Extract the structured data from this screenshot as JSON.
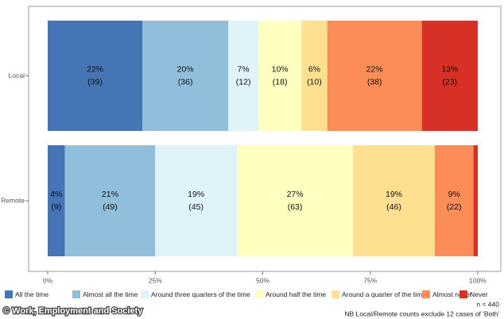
{
  "chart_data": {
    "type": "stacked-bar-horizontal",
    "categories": [
      "Local",
      "Remote"
    ],
    "series": [
      {
        "name": "All the time",
        "color": "#4575b4",
        "values": [
          22,
          4
        ],
        "value_labels": [
          "22%",
          "4%"
        ],
        "count_labels": [
          "(39)",
          "(9)"
        ]
      },
      {
        "name": "Almost all the time",
        "color": "#91bfdb",
        "values": [
          20,
          21
        ],
        "value_labels": [
          "20%",
          "21%"
        ],
        "count_labels": [
          "(36)",
          "(49)"
        ]
      },
      {
        "name": "Around three quarters of the time",
        "color": "#e0f3f8",
        "values": [
          7,
          19
        ],
        "value_labels": [
          "7%",
          "19%"
        ],
        "count_labels": [
          "(12)",
          "(45)"
        ]
      },
      {
        "name": "Around half the time",
        "color": "#ffffbf",
        "values": [
          10,
          27
        ],
        "value_labels": [
          "10%",
          "27%"
        ],
        "count_labels": [
          "(18)",
          "(63)"
        ]
      },
      {
        "name": "Around a quarter of the time",
        "color": "#fee090",
        "values": [
          6,
          19
        ],
        "value_labels": [
          "6%",
          "19%"
        ],
        "count_labels": [
          "(10)",
          "(46)"
        ]
      },
      {
        "name": "Almost never",
        "color": "#fc8d59",
        "values": [
          22,
          9
        ],
        "value_labels": [
          "22%",
          "9%"
        ],
        "count_labels": [
          "(38)",
          "(22)"
        ]
      },
      {
        "name": "Never",
        "color": "#d73027",
        "values": [
          13,
          1
        ],
        "value_labels": [
          "13%",
          null
        ],
        "count_labels": [
          "(23)",
          null
        ]
      }
    ],
    "xlim": [
      0,
      100
    ],
    "xticks": [
      {
        "value": 0,
        "label": "0%"
      },
      {
        "value": 25,
        "label": "25%"
      },
      {
        "value": 50,
        "label": "50%"
      },
      {
        "value": 75,
        "label": "75%"
      },
      {
        "value": 100,
        "label": "100%"
      }
    ],
    "legend": "bottom",
    "notes": [
      "n = 440",
      "NB Local/Remote counts exclude 12 cases of 'Both'"
    ],
    "source": "© Work, Employment and Society"
  }
}
